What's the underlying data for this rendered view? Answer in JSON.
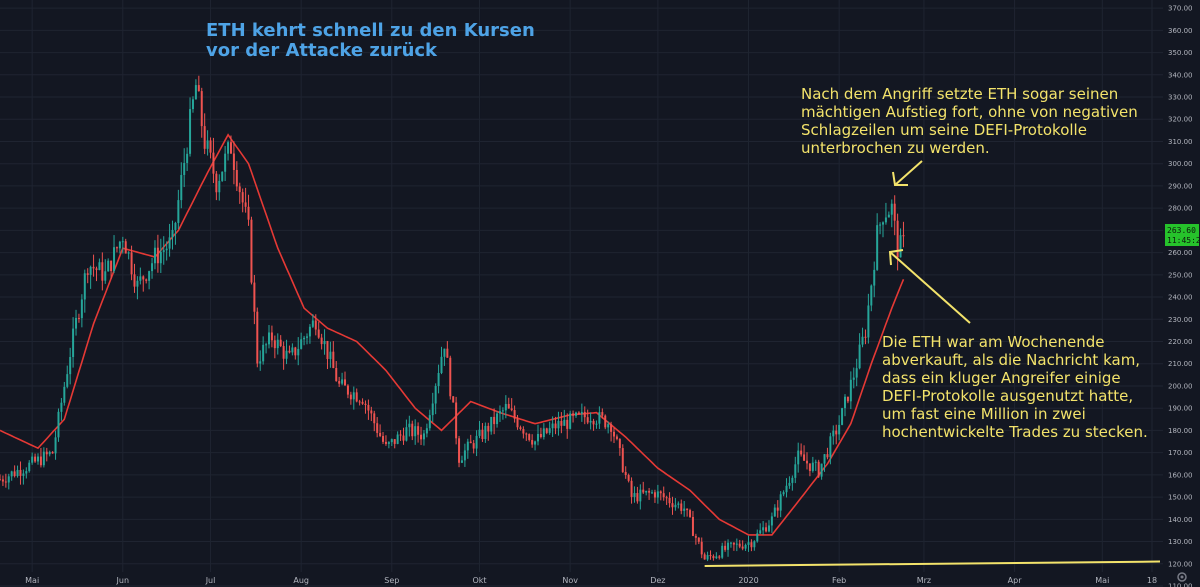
{
  "title_lines": [
    "ETH kehrt schnell zu den Kursen",
    "vor der Attacke zurück"
  ],
  "annotations": [
    {
      "name": "annotation-top-right",
      "lines": [
        "Nach dem Angriff setzte ETH sogar seinen",
        "mächtigen Aufstieg fort, ohne von negativen",
        "Schlagzeilen um seine DEFI-Protokolle",
        "unterbrochen zu werden."
      ]
    },
    {
      "name": "annotation-bottom-right",
      "lines": [
        "Die ETH war am Wochenende",
        "abverkauft, als die Nachricht kam,",
        "dass ein kluger Angreifer einige",
        "DEFI-Protokolle ausgenutzt hatte,",
        "um fast eine Million in zwei",
        "hochentwickelte Trades zu stecken."
      ]
    }
  ],
  "price_badge": {
    "price": "263.60",
    "countdown": "11:45:24",
    "color": "#26c22b"
  },
  "colors": {
    "background": "#131722",
    "up_candle": "#26a69a",
    "down_candle": "#ef5350",
    "moving_average": "#e53935",
    "annotation": "#f3e36b",
    "title": "#4ea3e6"
  },
  "chart_data": {
    "type": "candlestick",
    "title": "ETH kehrt schnell zu den Kursen vor der Attacke zurück",
    "ylim": [
      110,
      370
    ],
    "y_ticks": [
      110,
      120,
      130,
      140,
      150,
      160,
      170,
      180,
      190,
      200,
      210,
      220,
      230,
      240,
      250,
      260,
      270,
      280,
      290,
      300,
      310,
      320,
      330,
      340,
      350,
      360,
      370
    ],
    "x_labels": [
      {
        "label": "Mai",
        "date": "2019-05-01"
      },
      {
        "label": "Jun",
        "date": "2019-06-01"
      },
      {
        "label": "Jul",
        "date": "2019-07-01"
      },
      {
        "label": "Aug",
        "date": "2019-08-01"
      },
      {
        "label": "Sep",
        "date": "2019-09-01"
      },
      {
        "label": "Okt",
        "date": "2019-10-01"
      },
      {
        "label": "Nov",
        "date": "2019-11-01"
      },
      {
        "label": "Dez",
        "date": "2019-12-01"
      },
      {
        "label": "2020",
        "date": "2020-01-01"
      },
      {
        "label": "Feb",
        "date": "2020-02-01"
      },
      {
        "label": "Mrz",
        "date": "2020-03-01"
      },
      {
        "label": "Apr",
        "date": "2020-04-01"
      },
      {
        "label": "Mai",
        "date": "2020-05-01"
      },
      {
        "label": "18",
        "date": "2020-05-18"
      }
    ],
    "grid": true,
    "price_keypoints": [
      {
        "date": "2019-04-20",
        "price": 158
      },
      {
        "date": "2019-05-01",
        "price": 165
      },
      {
        "date": "2019-05-08",
        "price": 170
      },
      {
        "date": "2019-05-14",
        "price": 215
      },
      {
        "date": "2019-05-20",
        "price": 255
      },
      {
        "date": "2019-05-26",
        "price": 250
      },
      {
        "date": "2019-06-01",
        "price": 268
      },
      {
        "date": "2019-06-06",
        "price": 245
      },
      {
        "date": "2019-06-12",
        "price": 258
      },
      {
        "date": "2019-06-18",
        "price": 265
      },
      {
        "date": "2019-06-23",
        "price": 310
      },
      {
        "date": "2019-06-26",
        "price": 335
      },
      {
        "date": "2019-06-29",
        "price": 310
      },
      {
        "date": "2019-07-03",
        "price": 292
      },
      {
        "date": "2019-07-08",
        "price": 308
      },
      {
        "date": "2019-07-14",
        "price": 270
      },
      {
        "date": "2019-07-17",
        "price": 212
      },
      {
        "date": "2019-07-22",
        "price": 222
      },
      {
        "date": "2019-07-28",
        "price": 212
      },
      {
        "date": "2019-08-06",
        "price": 230
      },
      {
        "date": "2019-08-14",
        "price": 200
      },
      {
        "date": "2019-08-22",
        "price": 195
      },
      {
        "date": "2019-08-30",
        "price": 172
      },
      {
        "date": "2019-09-06",
        "price": 180
      },
      {
        "date": "2019-09-12",
        "price": 178
      },
      {
        "date": "2019-09-19",
        "price": 220
      },
      {
        "date": "2019-09-24",
        "price": 168
      },
      {
        "date": "2019-10-01",
        "price": 177
      },
      {
        "date": "2019-10-10",
        "price": 190
      },
      {
        "date": "2019-10-20",
        "price": 175
      },
      {
        "date": "2019-10-27",
        "price": 182
      },
      {
        "date": "2019-11-08",
        "price": 187
      },
      {
        "date": "2019-11-15",
        "price": 183
      },
      {
        "date": "2019-11-22",
        "price": 150
      },
      {
        "date": "2019-11-30",
        "price": 152
      },
      {
        "date": "2019-12-10",
        "price": 145
      },
      {
        "date": "2019-12-17",
        "price": 122
      },
      {
        "date": "2019-12-25",
        "price": 127
      },
      {
        "date": "2020-01-02",
        "price": 130
      },
      {
        "date": "2020-01-09",
        "price": 140
      },
      {
        "date": "2020-01-18",
        "price": 168
      },
      {
        "date": "2020-01-25",
        "price": 162
      },
      {
        "date": "2020-02-01",
        "price": 183
      },
      {
        "date": "2020-02-06",
        "price": 205
      },
      {
        "date": "2020-02-10",
        "price": 225
      },
      {
        "date": "2020-02-14",
        "price": 268
      },
      {
        "date": "2020-02-16",
        "price": 278
      },
      {
        "date": "2020-02-19",
        "price": 280
      },
      {
        "date": "2020-02-21",
        "price": 262
      },
      {
        "date": "2020-02-23",
        "price": 263.6
      }
    ],
    "moving_average_keypoints": [
      {
        "date": "2019-04-20",
        "price": 180
      },
      {
        "date": "2019-05-03",
        "price": 172
      },
      {
        "date": "2019-05-12",
        "price": 185
      },
      {
        "date": "2019-05-22",
        "price": 228
      },
      {
        "date": "2019-06-01",
        "price": 262
      },
      {
        "date": "2019-06-12",
        "price": 258
      },
      {
        "date": "2019-06-20",
        "price": 270
      },
      {
        "date": "2019-06-30",
        "price": 296
      },
      {
        "date": "2019-07-07",
        "price": 313
      },
      {
        "date": "2019-07-14",
        "price": 300
      },
      {
        "date": "2019-07-24",
        "price": 262
      },
      {
        "date": "2019-08-02",
        "price": 235
      },
      {
        "date": "2019-08-10",
        "price": 226
      },
      {
        "date": "2019-08-20",
        "price": 220
      },
      {
        "date": "2019-08-30",
        "price": 207
      },
      {
        "date": "2019-09-09",
        "price": 190
      },
      {
        "date": "2019-09-18",
        "price": 180
      },
      {
        "date": "2019-09-28",
        "price": 193
      },
      {
        "date": "2019-10-08",
        "price": 188
      },
      {
        "date": "2019-10-20",
        "price": 183
      },
      {
        "date": "2019-11-01",
        "price": 187
      },
      {
        "date": "2019-11-10",
        "price": 188
      },
      {
        "date": "2019-11-20",
        "price": 177
      },
      {
        "date": "2019-12-01",
        "price": 163
      },
      {
        "date": "2019-12-12",
        "price": 153
      },
      {
        "date": "2019-12-22",
        "price": 140
      },
      {
        "date": "2020-01-01",
        "price": 133
      },
      {
        "date": "2020-01-09",
        "price": 133
      },
      {
        "date": "2020-01-18",
        "price": 148
      },
      {
        "date": "2020-01-28",
        "price": 165
      },
      {
        "date": "2020-02-05",
        "price": 183
      },
      {
        "date": "2020-02-12",
        "price": 210
      },
      {
        "date": "2020-02-19",
        "price": 235
      },
      {
        "date": "2020-02-23",
        "price": 248
      }
    ],
    "support_line": [
      {
        "date": "2019-12-17",
        "price": 119
      },
      {
        "date": "2020-05-18",
        "price": 121
      }
    ]
  }
}
